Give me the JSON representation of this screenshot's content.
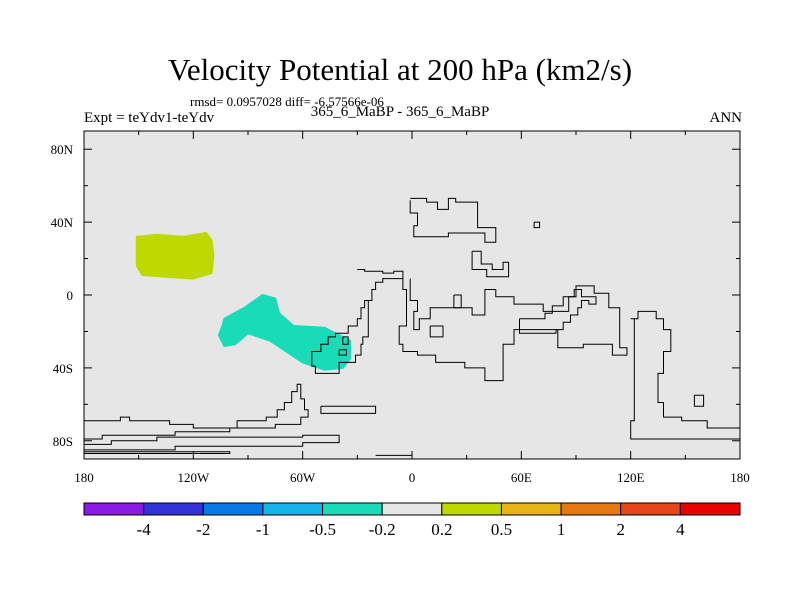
{
  "chart_data": {
    "type": "contour-map",
    "title": "Velocity Potential at 200 hPa (km2/s)",
    "stats_line": "rmsd= 0.0957028  diff= -6.57566e-06",
    "left_label": "Expt = teYdv1-teYdv",
    "center_label": "365_6_MaBP - 365_6_MaBP",
    "right_label": "ANN",
    "background_color": "#e6e6e6",
    "lon_range": [
      -180,
      180
    ],
    "lat_range": [
      -90,
      90
    ],
    "x_ticks": [
      {
        "lon": -180,
        "label": "180"
      },
      {
        "lon": -120,
        "label": "120W"
      },
      {
        "lon": -60,
        "label": "60W"
      },
      {
        "lon": 0,
        "label": "0"
      },
      {
        "lon": 60,
        "label": "60E"
      },
      {
        "lon": 120,
        "label": "120E"
      },
      {
        "lon": 180,
        "label": "180"
      }
    ],
    "y_ticks": [
      {
        "lat": 80,
        "label": "80N"
      },
      {
        "lat": 40,
        "label": "40N"
      },
      {
        "lat": 0,
        "label": "0"
      },
      {
        "lat": -40,
        "label": "40S"
      },
      {
        "lat": -80,
        "label": "80S"
      }
    ],
    "minor_x_ticks": [
      -150,
      -90,
      -30,
      30,
      90,
      150
    ],
    "minor_y_ticks": [
      60,
      20,
      -20,
      -60
    ],
    "filled_regions": [
      {
        "name": "positive-anomaly-region",
        "value_bin": "0.2 to 0.5",
        "color": "#bfd900",
        "points": [
          [
            -151,
            32
          ],
          [
            -140,
            33
          ],
          [
            -125,
            32
          ],
          [
            -113,
            34
          ],
          [
            -110,
            30
          ],
          [
            -109,
            22
          ],
          [
            -110,
            12
          ],
          [
            -120,
            9
          ],
          [
            -135,
            10
          ],
          [
            -148,
            11
          ],
          [
            -151,
            16
          ],
          [
            -151,
            25
          ]
        ]
      },
      {
        "name": "negative-anomaly-region",
        "value_bin": "-0.5 to -0.2",
        "color": "#1adbb8",
        "points": [
          [
            -103,
            -13
          ],
          [
            -92,
            -7
          ],
          [
            -82,
            0
          ],
          [
            -75,
            -2
          ],
          [
            -73,
            -10
          ],
          [
            -65,
            -17
          ],
          [
            -48,
            -18
          ],
          [
            -34,
            -25
          ],
          [
            -34,
            -35
          ],
          [
            -38,
            -40
          ],
          [
            -48,
            -41
          ],
          [
            -60,
            -37
          ],
          [
            -78,
            -25
          ],
          [
            -90,
            -21
          ],
          [
            -97,
            -27
          ],
          [
            -103,
            -28
          ],
          [
            -106,
            -22
          ],
          [
            -104,
            -17
          ]
        ]
      }
    ],
    "contour_lines": [
      [
        [
          -1,
          52
        ],
        [
          -1,
          45
        ],
        [
          3,
          45
        ],
        [
          3,
          38
        ],
        [
          1,
          38
        ],
        [
          1,
          32
        ],
        [
          20,
          32
        ],
        [
          20,
          34
        ],
        [
          40,
          34
        ],
        [
          40,
          29
        ],
        [
          46,
          29
        ],
        [
          46,
          37
        ],
        [
          36,
          37
        ],
        [
          36,
          51
        ],
        [
          24,
          51
        ],
        [
          24,
          53
        ],
        [
          20,
          53
        ],
        [
          20,
          47
        ],
        [
          14,
          47
        ],
        [
          14,
          51
        ],
        [
          8,
          51
        ],
        [
          8,
          53
        ],
        [
          -1,
          53
        ]
      ],
      [
        [
          67,
          40
        ],
        [
          70,
          40
        ],
        [
          70,
          37
        ],
        [
          67,
          37
        ],
        [
          67,
          40
        ]
      ],
      [
        [
          33,
          24
        ],
        [
          33,
          14
        ],
        [
          41,
          14
        ],
        [
          41,
          10
        ],
        [
          53,
          10
        ],
        [
          53,
          18
        ],
        [
          50,
          18
        ],
        [
          50,
          14
        ],
        [
          44,
          14
        ],
        [
          44,
          17
        ],
        [
          38,
          17
        ],
        [
          38,
          24
        ],
        [
          33,
          24
        ]
      ],
      [
        [
          -30,
          14
        ],
        [
          -26,
          14
        ],
        [
          -26,
          13
        ],
        [
          -16,
          13
        ],
        [
          -16,
          12
        ],
        [
          -10,
          12
        ],
        [
          -10,
          13
        ],
        [
          -5,
          13
        ],
        [
          -5,
          9
        ],
        [
          -16,
          9
        ],
        [
          -16,
          7
        ],
        [
          -20,
          7
        ],
        [
          -20,
          3
        ],
        [
          -22,
          3
        ],
        [
          -22,
          -3
        ],
        [
          -24,
          -3
        ],
        [
          -24,
          -23
        ],
        [
          -27,
          -23
        ],
        [
          -27,
          -27
        ],
        [
          -28,
          -27
        ],
        [
          -28,
          -33
        ],
        [
          -31,
          -33
        ],
        [
          -31,
          -37
        ],
        [
          -40,
          -37
        ],
        [
          -40,
          -43
        ],
        [
          -53,
          -43
        ],
        [
          -53,
          -39
        ],
        [
          -55,
          -39
        ],
        [
          -55,
          -31
        ],
        [
          -50,
          -31
        ],
        [
          -50,
          -27
        ],
        [
          -46,
          -27
        ],
        [
          -46,
          -23
        ],
        [
          -42,
          -23
        ],
        [
          -42,
          -21
        ],
        [
          -35,
          -21
        ],
        [
          -35,
          -17
        ],
        [
          -30,
          -17
        ],
        [
          -30,
          -13
        ],
        [
          -28,
          -13
        ],
        [
          -28,
          -7
        ],
        [
          -26,
          -7
        ],
        [
          -26,
          -3
        ],
        [
          -24,
          -3
        ]
      ],
      [
        [
          -5,
          9
        ],
        [
          -5,
          3
        ],
        [
          -3,
          3
        ],
        [
          -3,
          -17
        ],
        [
          -7,
          -17
        ],
        [
          -7,
          -27
        ],
        [
          -5,
          -27
        ],
        [
          -5,
          -31
        ],
        [
          3,
          -31
        ],
        [
          3,
          -33
        ],
        [
          13,
          -33
        ],
        [
          13,
          -37
        ],
        [
          29,
          -37
        ],
        [
          29,
          -40
        ],
        [
          40,
          -40
        ],
        [
          40,
          -47
        ],
        [
          50,
          -47
        ],
        [
          50,
          -27
        ],
        [
          56,
          -27
        ],
        [
          56,
          -19
        ],
        [
          80,
          -19
        ],
        [
          80,
          -29
        ],
        [
          94,
          -29
        ],
        [
          94,
          -27
        ],
        [
          110,
          -27
        ],
        [
          110,
          -33
        ],
        [
          118,
          -33
        ],
        [
          118,
          -29
        ],
        [
          114,
          -29
        ],
        [
          114,
          -7
        ],
        [
          108,
          -7
        ],
        [
          108,
          1
        ],
        [
          100,
          1
        ],
        [
          100,
          5
        ],
        [
          90,
          5
        ],
        [
          90,
          -1
        ],
        [
          86,
          -1
        ],
        [
          86,
          -9
        ],
        [
          72,
          -9
        ],
        [
          72,
          -5
        ],
        [
          56,
          -5
        ],
        [
          56,
          -1
        ],
        [
          46,
          -1
        ],
        [
          46,
          3
        ],
        [
          40,
          3
        ],
        [
          40,
          -11
        ],
        [
          33,
          -11
        ],
        [
          33,
          -7
        ],
        [
          10,
          -7
        ],
        [
          10,
          -13
        ],
        [
          4,
          -13
        ],
        [
          4,
          -19
        ],
        [
          1,
          -19
        ],
        [
          1,
          -9
        ],
        [
          3,
          -9
        ],
        [
          3,
          -3
        ],
        [
          -1,
          -3
        ],
        [
          -1,
          9
        ]
      ],
      [
        [
          23,
          0
        ],
        [
          27,
          0
        ],
        [
          27,
          -7
        ],
        [
          23,
          -7
        ],
        [
          23,
          0
        ]
      ],
      [
        [
          10,
          -17
        ],
        [
          17,
          -17
        ],
        [
          17,
          -23
        ],
        [
          10,
          -23
        ],
        [
          10,
          -17
        ]
      ],
      [
        [
          -38,
          -23
        ],
        [
          -35,
          -23
        ],
        [
          -35,
          -27
        ],
        [
          -38,
          -27
        ],
        [
          -38,
          -23
        ]
      ],
      [
        [
          -40,
          -30
        ],
        [
          -36,
          -30
        ],
        [
          -36,
          -33
        ],
        [
          -40,
          -33
        ],
        [
          -40,
          -30
        ]
      ],
      [
        [
          59,
          -13
        ],
        [
          73,
          -13
        ],
        [
          73,
          -10
        ],
        [
          77,
          -10
        ],
        [
          77,
          -6
        ],
        [
          83,
          -6
        ],
        [
          83,
          -1
        ],
        [
          89,
          -1
        ],
        [
          89,
          3
        ],
        [
          93,
          3
        ],
        [
          93,
          -1
        ],
        [
          101,
          -1
        ],
        [
          101,
          -5
        ],
        [
          97,
          -5
        ],
        [
          97,
          -3
        ],
        [
          93,
          -3
        ],
        [
          93,
          -7
        ],
        [
          91,
          -7
        ],
        [
          91,
          -11
        ],
        [
          87,
          -11
        ],
        [
          87,
          -15
        ],
        [
          83,
          -15
        ],
        [
          83,
          -19
        ],
        [
          79,
          -19
        ],
        [
          79,
          -21
        ],
        [
          59,
          -21
        ],
        [
          59,
          -13
        ]
      ],
      [
        [
          120,
          -13
        ],
        [
          124,
          -13
        ],
        [
          124,
          -9
        ],
        [
          134,
          -9
        ],
        [
          134,
          -13
        ],
        [
          138,
          -13
        ],
        [
          138,
          -19
        ],
        [
          142,
          -19
        ],
        [
          142,
          -31
        ],
        [
          138,
          -31
        ],
        [
          138,
          -43
        ],
        [
          135,
          -43
        ],
        [
          135,
          -59
        ],
        [
          138,
          -59
        ],
        [
          138,
          -67
        ],
        [
          148,
          -67
        ],
        [
          148,
          -69
        ],
        [
          162,
          -69
        ],
        [
          162,
          -73
        ],
        [
          180,
          -73
        ],
        [
          180,
          -79
        ],
        [
          120,
          -79
        ],
        [
          120,
          -69
        ],
        [
          122,
          -69
        ],
        [
          122,
          -13
        ]
      ],
      [
        [
          155,
          -55
        ],
        [
          160,
          -55
        ],
        [
          160,
          -61
        ],
        [
          155,
          -61
        ],
        [
          155,
          -55
        ]
      ],
      [
        [
          -180,
          -69
        ],
        [
          -160,
          -69
        ],
        [
          -160,
          -67
        ],
        [
          -155,
          -67
        ],
        [
          -155,
          -69
        ],
        [
          -133,
          -69
        ],
        [
          -133,
          -71
        ],
        [
          -120,
          -71
        ],
        [
          -120,
          -73
        ],
        [
          -96,
          -73
        ],
        [
          -96,
          -69
        ],
        [
          -80,
          -69
        ],
        [
          -80,
          -67
        ],
        [
          -74,
          -67
        ],
        [
          -74,
          -63
        ],
        [
          -70,
          -63
        ],
        [
          -70,
          -59
        ],
        [
          -66,
          -59
        ],
        [
          -66,
          -53
        ],
        [
          -63,
          -53
        ],
        [
          -63,
          -49
        ],
        [
          -61,
          -49
        ],
        [
          -61,
          -57
        ],
        [
          -59,
          -57
        ],
        [
          -59,
          -63
        ],
        [
          -57,
          -63
        ],
        [
          -57,
          -67
        ],
        [
          -61,
          -67
        ],
        [
          -61,
          -71
        ],
        [
          -75,
          -71
        ],
        [
          -75,
          -73
        ],
        [
          -100,
          -73
        ],
        [
          -100,
          -75
        ],
        [
          -130,
          -75
        ],
        [
          -130,
          -77
        ],
        [
          -170,
          -77
        ],
        [
          -170,
          -79
        ],
        [
          -180,
          -79
        ]
      ],
      [
        [
          -180,
          -82
        ],
        [
          -165,
          -82
        ],
        [
          -165,
          -80
        ],
        [
          -140,
          -80
        ],
        [
          -140,
          -78
        ],
        [
          -60,
          -78
        ],
        [
          -60,
          -77
        ],
        [
          -40,
          -77
        ],
        [
          -40,
          -81
        ],
        [
          -60,
          -81
        ],
        [
          -60,
          -83
        ],
        [
          -130,
          -83
        ],
        [
          -130,
          -85
        ],
        [
          -180,
          -85
        ]
      ],
      [
        [
          -180,
          -86
        ],
        [
          -100,
          -86
        ],
        [
          -100,
          -87
        ],
        [
          -180,
          -87
        ]
      ],
      [
        [
          -50,
          -61
        ],
        [
          -20,
          -61
        ],
        [
          -20,
          -65
        ],
        [
          -50,
          -65
        ],
        [
          -50,
          -61
        ]
      ],
      [
        [
          -20,
          -88
        ],
        [
          0,
          -88
        ]
      ]
    ],
    "colorbar": {
      "colors": [
        "#8a1ae6",
        "#3232d9",
        "#0a78e6",
        "#14b4e6",
        "#1adbb8",
        "#e6e6e6",
        "#bfd900",
        "#e6b414",
        "#e67814",
        "#e6461a",
        "#e60000"
      ],
      "labels": [
        "-4",
        "-2",
        "-1",
        "-0.5",
        "-0.2",
        "0.2",
        "0.5",
        "1",
        "2",
        "4"
      ]
    }
  }
}
